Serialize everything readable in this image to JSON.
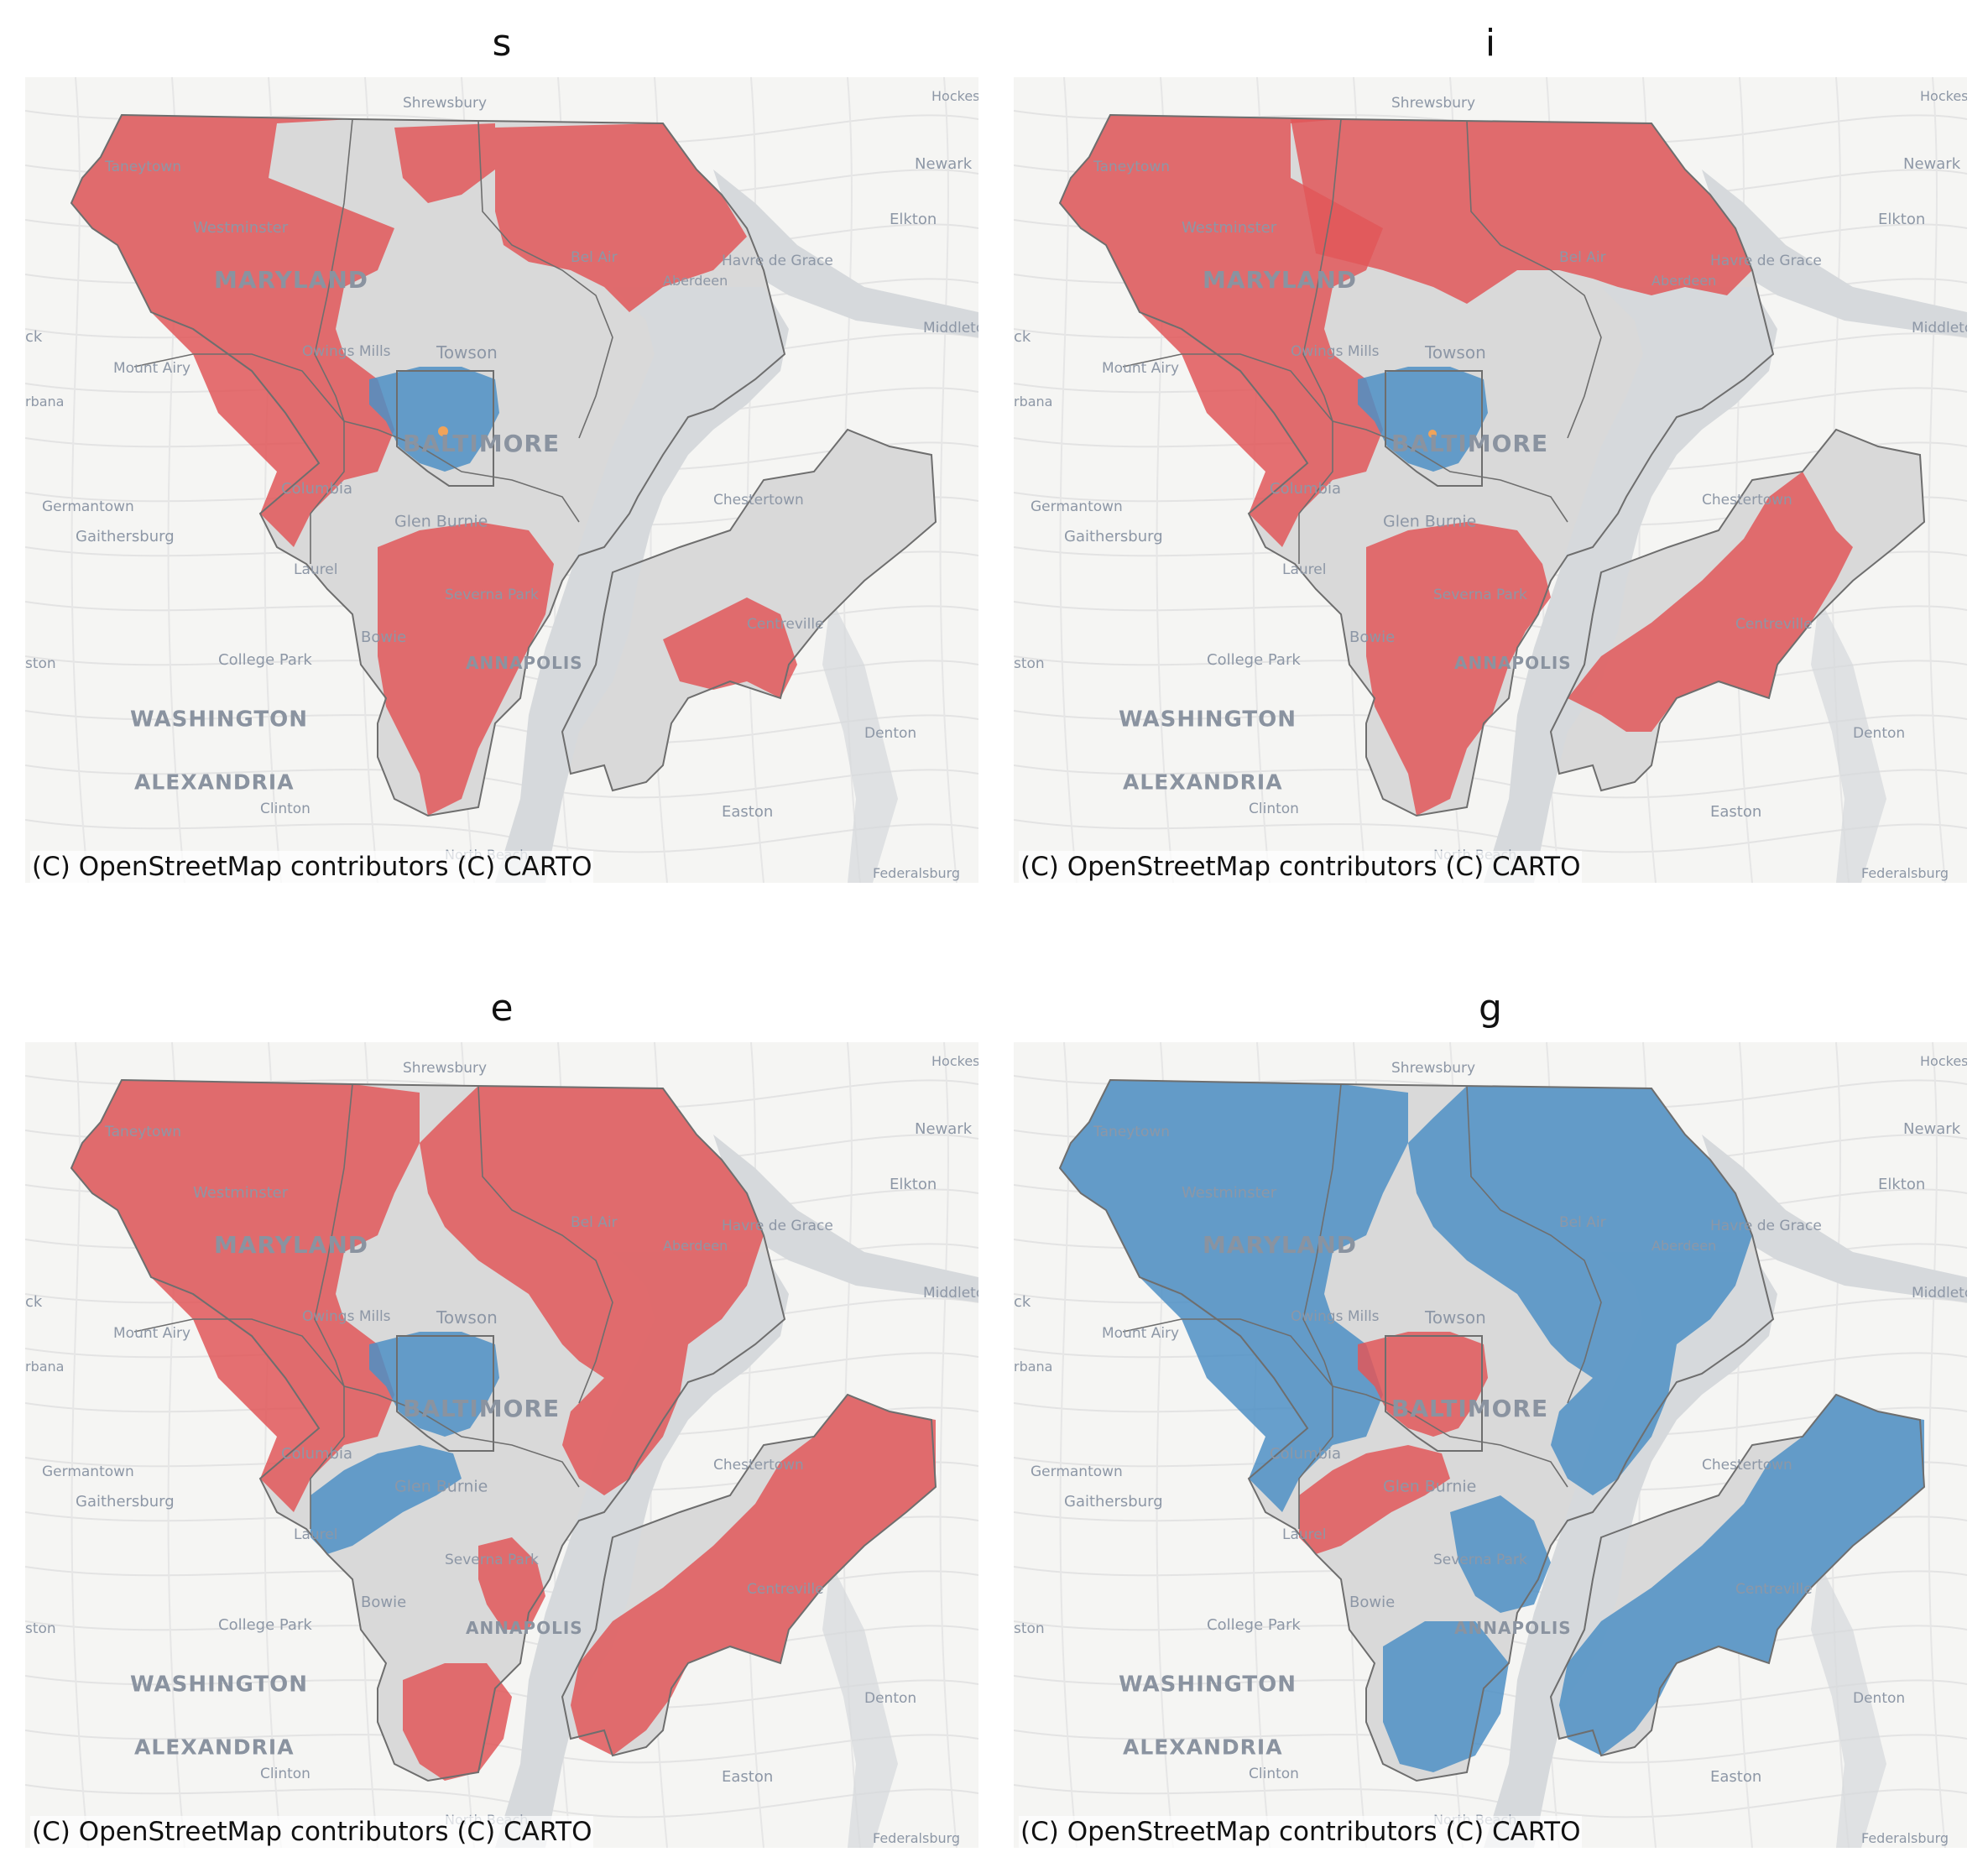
{
  "panels": [
    {
      "title": "s",
      "attribution": "(C) OpenStreetMap contributors (C) CARTO",
      "scheme": "s"
    },
    {
      "title": "i",
      "attribution": "(C) OpenStreetMap contributors (C) CARTO",
      "scheme": "i"
    },
    {
      "title": "e",
      "attribution": "(C) OpenStreetMap contributors (C) CARTO",
      "scheme": "e"
    },
    {
      "title": "g",
      "attribution": "(C) OpenStreetMap contributors (C) CARTO",
      "scheme": "g"
    }
  ],
  "basemap_labels": {
    "shrewsbury": "Shrewsbury",
    "hockessin": "Hockes",
    "newark": "Newark",
    "elkton": "Elkton",
    "havre_de_grace": "Havre de Grace",
    "bel_air": "Bel Air",
    "aberdeen": "Aberdeen",
    "taneytown": "Taneytown",
    "westminster": "Westminster",
    "maryland": "MARYLAND",
    "owings_mills": "Owings Mills",
    "towson": "Towson",
    "middletown": "Middletov",
    "mount_airy": "Mount Airy",
    "urbana": "rbana",
    "frederick": "ck",
    "baltimore": "BALTIMORE",
    "columbia": "Columbia",
    "germantown": "Germantown",
    "gaithersburg": "Gaithersburg",
    "glen_burnie": "Glen Burnie",
    "chestertown": "Chestertown",
    "laurel": "Laurel",
    "severna_park": "Severna Park",
    "bowie": "Bowie",
    "college_park": "College Park",
    "annapolis": "ANNAPOLIS",
    "centreville": "Centreville",
    "washington": "WASHINGTON",
    "denton": "Denton",
    "alexandria": "ALEXANDRIA",
    "clinton": "Clinton",
    "easton": "Easton",
    "north_beach": "North Beach",
    "federalsburg": "Federalsburg",
    "boston_edge": "ston"
  },
  "colors": {
    "red": "#e15759",
    "blue": "#4e8fc4",
    "orange": "#f0a35a",
    "gray": "#d9d9d9",
    "water": "#d6d9dc",
    "border": "#6e6e6e"
  }
}
